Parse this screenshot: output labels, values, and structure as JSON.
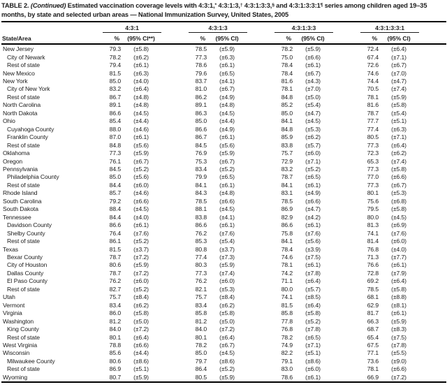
{
  "title": {
    "segments": [
      {
        "text": "TABLE 2. ",
        "style": "bold"
      },
      {
        "text": "(Continued)",
        "style": "italic"
      },
      {
        "text": " Estimated vaccination coverage levels with 4:3:1,",
        "style": "bold"
      },
      {
        "text": "*",
        "style": "sup"
      },
      {
        "text": " 4:3:1:3,",
        "style": "bold"
      },
      {
        "text": "†",
        "style": "sup"
      },
      {
        "text": " 4:3:1:3:3,",
        "style": "bold"
      },
      {
        "text": "§",
        "style": "sup"
      },
      {
        "text": " and 4:3:1:3:3:1",
        "style": "bold"
      },
      {
        "text": "¶",
        "style": "sup"
      },
      {
        "text": " series among children aged 19–35 months, by state and selected urban areas — National Immunization Survey, United States, 2005",
        "style": "bold"
      }
    ]
  },
  "table": {
    "columns": {
      "state_area": "State/Area",
      "groups": [
        {
          "label": "4:3:1",
          "pct": "%",
          "ci": "(95% CI**)"
        },
        {
          "label": "4:3:1:3",
          "pct": "%",
          "ci": "(95% CI)"
        },
        {
          "label": "4:3:1:3:3",
          "pct": "%",
          "ci": "(95% CI)"
        },
        {
          "label": "4:3:1:3:3:1",
          "pct": "%",
          "ci": "(95% CI)"
        }
      ]
    },
    "rows": [
      {
        "area": "New Jersey",
        "indent": 0,
        "values": [
          [
            "79.3",
            "(±5.8)"
          ],
          [
            "78.5",
            "(±5.9)"
          ],
          [
            "78.2",
            "(±5.9)"
          ],
          [
            "72.4",
            "(±6.4)"
          ]
        ]
      },
      {
        "area": "City of Newark",
        "indent": 1,
        "values": [
          [
            "78.2",
            "(±6.2)"
          ],
          [
            "77.3",
            "(±6.3)"
          ],
          [
            "75.0",
            "(±6.6)"
          ],
          [
            "67.4",
            "(±7.1)"
          ]
        ]
      },
      {
        "area": "Rest of state",
        "indent": 1,
        "values": [
          [
            "79.4",
            "(±6.1)"
          ],
          [
            "78.6",
            "(±6.1)"
          ],
          [
            "78.4",
            "(±6.1)"
          ],
          [
            "72.6",
            "(±6.7)"
          ]
        ]
      },
      {
        "area": "New Mexico",
        "indent": 0,
        "values": [
          [
            "81.5",
            "(±6.3)"
          ],
          [
            "79.6",
            "(±6.5)"
          ],
          [
            "78.4",
            "(±6.7)"
          ],
          [
            "74.6",
            "(±7.0)"
          ]
        ]
      },
      {
        "area": "New York",
        "indent": 0,
        "values": [
          [
            "85.0",
            "(±4.0)"
          ],
          [
            "83.7",
            "(±4.1)"
          ],
          [
            "81.6",
            "(±4.3)"
          ],
          [
            "74.4",
            "(±4.7)"
          ]
        ]
      },
      {
        "area": "City of New York",
        "indent": 1,
        "values": [
          [
            "83.2",
            "(±6.4)"
          ],
          [
            "81.0",
            "(±6.7)"
          ],
          [
            "78.1",
            "(±7.0)"
          ],
          [
            "70.5",
            "(±7.4)"
          ]
        ]
      },
      {
        "area": "Rest of state",
        "indent": 1,
        "values": [
          [
            "86.7",
            "(±4.8)"
          ],
          [
            "86.2",
            "(±4.9)"
          ],
          [
            "84.8",
            "(±5.0)"
          ],
          [
            "78.1",
            "(±5.9)"
          ]
        ]
      },
      {
        "area": "North Carolina",
        "indent": 0,
        "values": [
          [
            "89.1",
            "(±4.8)"
          ],
          [
            "89.1",
            "(±4.8)"
          ],
          [
            "85.2",
            "(±5.4)"
          ],
          [
            "81.6",
            "(±5.8)"
          ]
        ]
      },
      {
        "area": "North Dakota",
        "indent": 0,
        "values": [
          [
            "86.6",
            "(±4.5)"
          ],
          [
            "86.3",
            "(±4.5)"
          ],
          [
            "85.0",
            "(±4.7)"
          ],
          [
            "78.7",
            "(±5.4)"
          ]
        ]
      },
      {
        "area": "Ohio",
        "indent": 0,
        "values": [
          [
            "85.4",
            "(±4.4)"
          ],
          [
            "85.0",
            "(±4.4)"
          ],
          [
            "84.1",
            "(±4.5)"
          ],
          [
            "77.7",
            "(±5.1)"
          ]
        ]
      },
      {
        "area": "Cuyahoga County",
        "indent": 1,
        "values": [
          [
            "88.0",
            "(±4.6)"
          ],
          [
            "86.6",
            "(±4.9)"
          ],
          [
            "84.8",
            "(±5.3)"
          ],
          [
            "77.4",
            "(±6.3)"
          ]
        ]
      },
      {
        "area": "Franklin County",
        "indent": 1,
        "values": [
          [
            "87.0",
            "(±6.1)"
          ],
          [
            "86.7",
            "(±6.1)"
          ],
          [
            "85.9",
            "(±6.2)"
          ],
          [
            "80.5",
            "(±7.1)"
          ]
        ]
      },
      {
        "area": "Rest of state",
        "indent": 1,
        "values": [
          [
            "84.8",
            "(±5.6)"
          ],
          [
            "84.5",
            "(±5.6)"
          ],
          [
            "83.8",
            "(±5.7)"
          ],
          [
            "77.3",
            "(±6.4)"
          ]
        ]
      },
      {
        "area": "Oklahoma",
        "indent": 0,
        "values": [
          [
            "77.3",
            "(±5.9)"
          ],
          [
            "76.9",
            "(±5.9)"
          ],
          [
            "75.7",
            "(±6.0)"
          ],
          [
            "72.3",
            "(±6.2)"
          ]
        ]
      },
      {
        "area": "Oregon",
        "indent": 0,
        "values": [
          [
            "76.1",
            "(±6.7)"
          ],
          [
            "75.3",
            "(±6.7)"
          ],
          [
            "72.9",
            "(±7.1)"
          ],
          [
            "65.3",
            "(±7.4)"
          ]
        ]
      },
      {
        "area": "Pennsylvania",
        "indent": 0,
        "values": [
          [
            "84.5",
            "(±5.2)"
          ],
          [
            "83.4",
            "(±5.2)"
          ],
          [
            "83.2",
            "(±5.2)"
          ],
          [
            "77.3",
            "(±5.8)"
          ]
        ]
      },
      {
        "area": "Philadelphia County",
        "indent": 1,
        "values": [
          [
            "85.0",
            "(±5.6)"
          ],
          [
            "79.9",
            "(±6.5)"
          ],
          [
            "78.7",
            "(±6.5)"
          ],
          [
            "77.0",
            "(±6.6)"
          ]
        ]
      },
      {
        "area": "Rest of state",
        "indent": 1,
        "values": [
          [
            "84.4",
            "(±6.0)"
          ],
          [
            "84.1",
            "(±6.1)"
          ],
          [
            "84.1",
            "(±6.1)"
          ],
          [
            "77.3",
            "(±6.7)"
          ]
        ]
      },
      {
        "area": "Rhode Island",
        "indent": 0,
        "values": [
          [
            "85.7",
            "(±4.6)"
          ],
          [
            "84.3",
            "(±4.8)"
          ],
          [
            "83.1",
            "(±4.9)"
          ],
          [
            "80.1",
            "(±5.3)"
          ]
        ]
      },
      {
        "area": "South Carolina",
        "indent": 0,
        "values": [
          [
            "79.2",
            "(±6.6)"
          ],
          [
            "78.5",
            "(±6.6)"
          ],
          [
            "78.5",
            "(±6.6)"
          ],
          [
            "75.6",
            "(±6.8)"
          ]
        ]
      },
      {
        "area": "South Dakota",
        "indent": 0,
        "values": [
          [
            "88.4",
            "(±4.5)"
          ],
          [
            "88.1",
            "(±4.5)"
          ],
          [
            "86.9",
            "(±4.7)"
          ],
          [
            "79.5",
            "(±5.8)"
          ]
        ]
      },
      {
        "area": "Tennessee",
        "indent": 0,
        "values": [
          [
            "84.4",
            "(±4.0)"
          ],
          [
            "83.8",
            "(±4.1)"
          ],
          [
            "82.9",
            "(±4.2)"
          ],
          [
            "80.0",
            "(±4.5)"
          ]
        ]
      },
      {
        "area": "Davidson County",
        "indent": 1,
        "values": [
          [
            "86.6",
            "(±6.1)"
          ],
          [
            "86.6",
            "(±6.1)"
          ],
          [
            "86.6",
            "(±6.1)"
          ],
          [
            "81.3",
            "(±6.9)"
          ]
        ]
      },
      {
        "area": "Shelby County",
        "indent": 1,
        "values": [
          [
            "76.4",
            "(±7.6)"
          ],
          [
            "76.2",
            "(±7.6)"
          ],
          [
            "75.8",
            "(±7.6)"
          ],
          [
            "74.1",
            "(±7.6)"
          ]
        ]
      },
      {
        "area": "Rest of state",
        "indent": 1,
        "values": [
          [
            "86.1",
            "(±5.2)"
          ],
          [
            "85.3",
            "(±5.4)"
          ],
          [
            "84.1",
            "(±5.6)"
          ],
          [
            "81.4",
            "(±6.0)"
          ]
        ]
      },
      {
        "area": "Texas",
        "indent": 0,
        "values": [
          [
            "81.5",
            "(±3.7)"
          ],
          [
            "80.8",
            "(±3.7)"
          ],
          [
            "78.4",
            "(±3.9)"
          ],
          [
            "76.8",
            "(±4.0)"
          ]
        ]
      },
      {
        "area": "Bexar County",
        "indent": 1,
        "values": [
          [
            "78.7",
            "(±7.2)"
          ],
          [
            "77.4",
            "(±7.3)"
          ],
          [
            "74.6",
            "(±7.5)"
          ],
          [
            "71.3",
            "(±7.7)"
          ]
        ]
      },
      {
        "area": "City of Houston",
        "indent": 1,
        "values": [
          [
            "80.6",
            "(±5.9)"
          ],
          [
            "80.3",
            "(±5.9)"
          ],
          [
            "78.1",
            "(±6.1)"
          ],
          [
            "76.6",
            "(±6.1)"
          ]
        ]
      },
      {
        "area": "Dallas County",
        "indent": 1,
        "values": [
          [
            "78.7",
            "(±7.2)"
          ],
          [
            "77.3",
            "(±7.4)"
          ],
          [
            "74.2",
            "(±7.8)"
          ],
          [
            "72.8",
            "(±7.9)"
          ]
        ]
      },
      {
        "area": "El Paso County",
        "indent": 1,
        "values": [
          [
            "76.2",
            "(±6.0)"
          ],
          [
            "76.2",
            "(±6.0)"
          ],
          [
            "71.1",
            "(±6.4)"
          ],
          [
            "69.2",
            "(±6.4)"
          ]
        ]
      },
      {
        "area": "Rest of state",
        "indent": 1,
        "values": [
          [
            "82.7",
            "(±5.2)"
          ],
          [
            "82.1",
            "(±5.3)"
          ],
          [
            "80.0",
            "(±5.7)"
          ],
          [
            "78.5",
            "(±5.8)"
          ]
        ]
      },
      {
        "area": "Utah",
        "indent": 0,
        "values": [
          [
            "75.7",
            "(±8.4)"
          ],
          [
            "75.7",
            "(±8.4)"
          ],
          [
            "74.1",
            "(±8.5)"
          ],
          [
            "68.1",
            "(±8.8)"
          ]
        ]
      },
      {
        "area": "Vermont",
        "indent": 0,
        "values": [
          [
            "83.4",
            "(±6.2)"
          ],
          [
            "83.4",
            "(±6.2)"
          ],
          [
            "81.5",
            "(±6.4)"
          ],
          [
            "62.9",
            "(±8.1)"
          ]
        ]
      },
      {
        "area": "Virginia",
        "indent": 0,
        "values": [
          [
            "86.0",
            "(±5.8)"
          ],
          [
            "85.8",
            "(±5.8)"
          ],
          [
            "85.8",
            "(±5.8)"
          ],
          [
            "81.7",
            "(±6.1)"
          ]
        ]
      },
      {
        "area": "Washington",
        "indent": 0,
        "values": [
          [
            "81.2",
            "(±5.0)"
          ],
          [
            "81.2",
            "(±5.0)"
          ],
          [
            "77.8",
            "(±5.2)"
          ],
          [
            "66.3",
            "(±5.9)"
          ]
        ]
      },
      {
        "area": "King County",
        "indent": 1,
        "values": [
          [
            "84.0",
            "(±7.2)"
          ],
          [
            "84.0",
            "(±7.2)"
          ],
          [
            "76.8",
            "(±7.8)"
          ],
          [
            "68.7",
            "(±8.3)"
          ]
        ]
      },
      {
        "area": "Rest of state",
        "indent": 1,
        "values": [
          [
            "80.1",
            "(±6.4)"
          ],
          [
            "80.1",
            "(±6.4)"
          ],
          [
            "78.2",
            "(±6.5)"
          ],
          [
            "65.4",
            "(±7.5)"
          ]
        ]
      },
      {
        "area": "West Virginia",
        "indent": 0,
        "values": [
          [
            "78.8",
            "(±6.6)"
          ],
          [
            "78.2",
            "(±6.7)"
          ],
          [
            "74.9",
            "(±7.1)"
          ],
          [
            "67.5",
            "(±7.8)"
          ]
        ]
      },
      {
        "area": "Wisconsin",
        "indent": 0,
        "values": [
          [
            "85.6",
            "(±4.4)"
          ],
          [
            "85.0",
            "(±4.5)"
          ],
          [
            "82.2",
            "(±5.1)"
          ],
          [
            "77.1",
            "(±5.5)"
          ]
        ]
      },
      {
        "area": "Milwaukee County",
        "indent": 1,
        "values": [
          [
            "80.6",
            "(±8.6)"
          ],
          [
            "79.7",
            "(±8.6)"
          ],
          [
            "79.1",
            "(±8.6)"
          ],
          [
            "73.6",
            "(±9.0)"
          ]
        ]
      },
      {
        "area": "Rest of state",
        "indent": 1,
        "values": [
          [
            "86.9",
            "(±5.1)"
          ],
          [
            "86.4",
            "(±5.2)"
          ],
          [
            "83.0",
            "(±6.0)"
          ],
          [
            "78.1",
            "(±6.6)"
          ]
        ]
      },
      {
        "area": "Wyoming",
        "indent": 0,
        "values": [
          [
            "80.7",
            "(±5.9)"
          ],
          [
            "80.5",
            "(±5.9)"
          ],
          [
            "78.6",
            "(±6.1)"
          ],
          [
            "66.9",
            "(±7.2)"
          ]
        ]
      }
    ]
  }
}
